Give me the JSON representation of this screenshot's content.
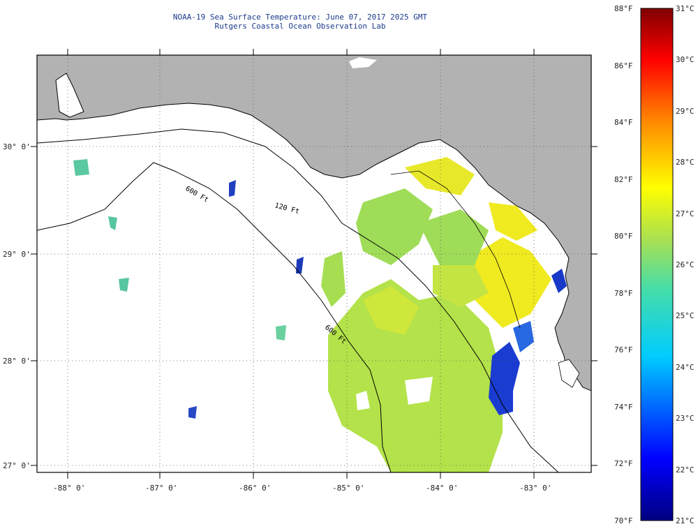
{
  "title": {
    "line1": "NOAA-19 Sea Surface Temperature:  June 07, 2017 2025 GMT",
    "line2": "Rutgers Coastal Ocean Observation Lab"
  },
  "axes": {
    "lat_labels": [
      "30° 0'",
      "29° 0'",
      "28° 0'",
      "27° 0'"
    ],
    "lon_labels": [
      "-88° 0'",
      "-87° 0'",
      "-86° 0'",
      "-85° 0'",
      "-84° 0'",
      "-83° 0'"
    ]
  },
  "isobaths": {
    "label_120": "120 Ft",
    "label_600a": "600 Ft",
    "label_600b": "600 Ft"
  },
  "colorbar": {
    "fahrenheit": [
      "88°F",
      "86°F",
      "84°F",
      "82°F",
      "80°F",
      "78°F",
      "76°F",
      "74°F",
      "72°F",
      "70°F"
    ],
    "celsius": [
      "31°C",
      "30°C",
      "29°C",
      "28°C",
      "27°C",
      "26°C",
      "25°C",
      "24°C",
      "23°C",
      "22°C",
      "21°C"
    ]
  },
  "colors": {
    "land": "#b2b2b2",
    "ocean_nodata": "#ffffff",
    "warm_yellow": "#f2ec1c",
    "mid_green": "#b0e04c",
    "cool_blue": "#1030c0"
  }
}
